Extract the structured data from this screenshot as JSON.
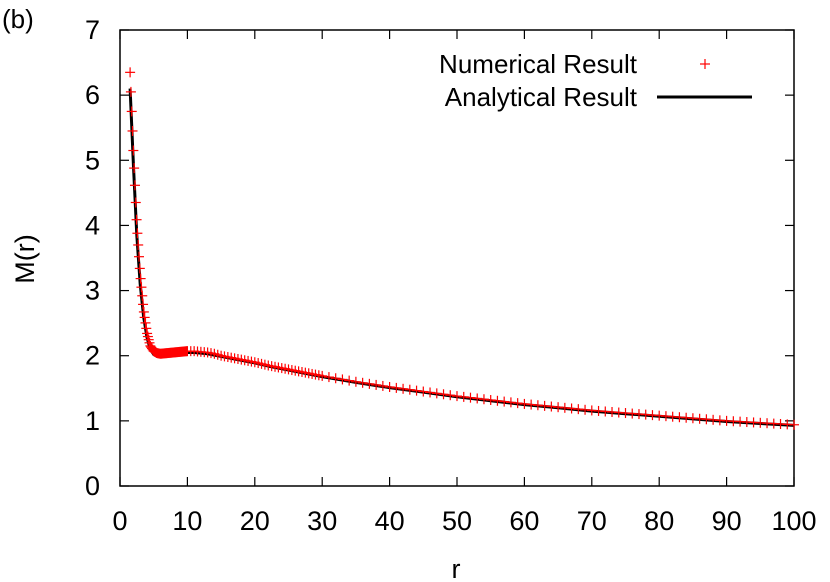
{
  "panel_label": "(b)",
  "chart_data": {
    "type": "line",
    "xlabel": "r",
    "ylabel": "M(r)",
    "xlim": [
      0,
      100
    ],
    "ylim": [
      0,
      7
    ],
    "xticks": [
      0,
      10,
      20,
      30,
      40,
      50,
      60,
      70,
      80,
      90,
      100
    ],
    "yticks": [
      0,
      1,
      2,
      3,
      4,
      5,
      6,
      7
    ],
    "grid": false,
    "legend_position": "top-right",
    "series": [
      {
        "name": "Numerical Result",
        "style": "markers",
        "marker": "plus",
        "color": "#ff0000",
        "x": [
          1.5,
          2,
          2.5,
          3,
          3.5,
          4,
          4.5,
          5,
          5.5,
          6,
          7,
          8,
          9,
          10,
          11,
          12,
          13,
          14,
          15,
          16,
          17,
          18,
          20,
          22,
          25,
          28,
          30,
          35,
          40,
          45,
          50,
          55,
          60,
          65,
          70,
          75,
          80,
          85,
          90,
          95,
          100
        ],
        "y": [
          6.35,
          5.1,
          4.0,
          3.25,
          2.7,
          2.35,
          2.15,
          2.07,
          2.04,
          2.03,
          2.04,
          2.05,
          2.06,
          2.07,
          2.07,
          2.06,
          2.05,
          2.03,
          2.0,
          1.98,
          1.96,
          1.94,
          1.9,
          1.85,
          1.79,
          1.73,
          1.69,
          1.6,
          1.52,
          1.45,
          1.38,
          1.32,
          1.26,
          1.21,
          1.16,
          1.12,
          1.08,
          1.04,
          1.0,
          0.97,
          0.94
        ]
      },
      {
        "name": "Analytical Result",
        "style": "line",
        "color": "#000000",
        "x": [
          1.5,
          2,
          2.5,
          3,
          3.5,
          4,
          4.5,
          5,
          5.5,
          6,
          7,
          8,
          9,
          10,
          11,
          12,
          13,
          14,
          15,
          16,
          17,
          18,
          20,
          22,
          25,
          28,
          30,
          35,
          40,
          45,
          50,
          55,
          60,
          65,
          70,
          75,
          80,
          85,
          90,
          95,
          100
        ],
        "y": [
          6.1,
          4.9,
          3.85,
          3.1,
          2.6,
          2.28,
          2.1,
          2.02,
          1.99,
          1.99,
          2.01,
          2.03,
          2.04,
          2.05,
          2.05,
          2.04,
          2.03,
          2.01,
          1.99,
          1.97,
          1.95,
          1.93,
          1.89,
          1.84,
          1.78,
          1.72,
          1.68,
          1.59,
          1.51,
          1.44,
          1.37,
          1.31,
          1.25,
          1.2,
          1.15,
          1.11,
          1.07,
          1.03,
          0.99,
          0.96,
          0.93
        ]
      }
    ]
  }
}
